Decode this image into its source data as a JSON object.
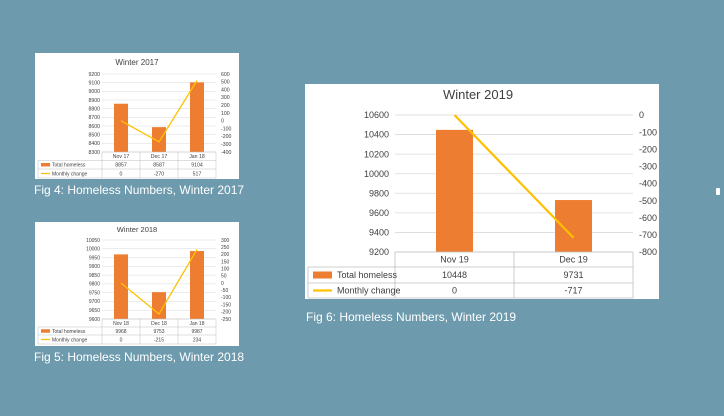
{
  "chart_data": [
    {
      "type": "bar",
      "title": "Winter 2017",
      "categories": [
        "Nov 17",
        "Dec 17",
        "Jan 18"
      ],
      "series": [
        {
          "name": "Total homeless",
          "type": "bar",
          "axis": "left",
          "values": [
            8857,
            8587,
            9104
          ],
          "labels": [
            "8857",
            "8587",
            "9104"
          ]
        },
        {
          "name": "Monthly change",
          "type": "line",
          "axis": "right",
          "values": [
            0,
            -270,
            517
          ],
          "labels": [
            "0",
            "-270",
            "517"
          ]
        }
      ],
      "ylim": [
        8300,
        9200
      ],
      "yticks": [
        8300,
        8400,
        8500,
        8600,
        8700,
        8800,
        8900,
        9000,
        9100,
        9200
      ],
      "y2lim": [
        -400,
        600
      ],
      "y2ticks": [
        -400,
        -300,
        -200,
        -100,
        0,
        100,
        200,
        300,
        400,
        500,
        600
      ],
      "grid": true,
      "legend": "data-table"
    },
    {
      "type": "bar",
      "title": "Winter 2018",
      "categories": [
        "Nov 18",
        "Dec 18",
        "Jan 18"
      ],
      "series": [
        {
          "name": "Total homeless",
          "type": "bar",
          "axis": "left",
          "values": [
            9968,
            9753,
            9987
          ],
          "labels": [
            "9968",
            "9753",
            "9987"
          ]
        },
        {
          "name": "Monthly change",
          "type": "line",
          "axis": "right",
          "values": [
            0,
            -215,
            234
          ],
          "labels": [
            "0",
            "-215",
            "234"
          ]
        }
      ],
      "ylim": [
        9600,
        10050
      ],
      "yticks": [
        9600,
        9650,
        9700,
        9750,
        9800,
        9850,
        9900,
        9950,
        10000,
        10050
      ],
      "y2lim": [
        -250,
        300
      ],
      "y2ticks": [
        -250,
        -200,
        -150,
        -100,
        -50,
        0,
        50,
        100,
        150,
        200,
        250,
        300
      ],
      "grid": true,
      "legend": "data-table"
    },
    {
      "type": "bar",
      "title": "Winter 2019",
      "categories": [
        "Nov 19",
        "Dec 19"
      ],
      "series": [
        {
          "name": "Total homeless",
          "type": "bar",
          "axis": "left",
          "values": [
            10448,
            9731
          ],
          "labels": [
            "10448",
            "9731"
          ]
        },
        {
          "name": "Monthly change",
          "type": "line",
          "axis": "right",
          "values": [
            0,
            -717
          ],
          "labels": [
            "0",
            "-717"
          ]
        }
      ],
      "ylim": [
        9200,
        10600
      ],
      "yticks": [
        9200,
        9400,
        9600,
        9800,
        10000,
        10200,
        10400,
        10600
      ],
      "y2lim": [
        -800,
        0
      ],
      "y2ticks": [
        -800,
        -700,
        -600,
        -500,
        -400,
        -300,
        -200,
        -100,
        0
      ],
      "grid": true,
      "legend": "data-table"
    }
  ],
  "captions": [
    "Fig 4: Homeless Numbers, Winter 2017",
    "Fig 5: Homeless Numbers, Winter 2018",
    "Fig 6: Homeless Numbers, Winter 2019"
  ],
  "colors": {
    "background": "#6d9aad",
    "bar": "#ed7d31",
    "line": "#ffc000",
    "grid": "#d9d9d9",
    "text": "#404040"
  }
}
